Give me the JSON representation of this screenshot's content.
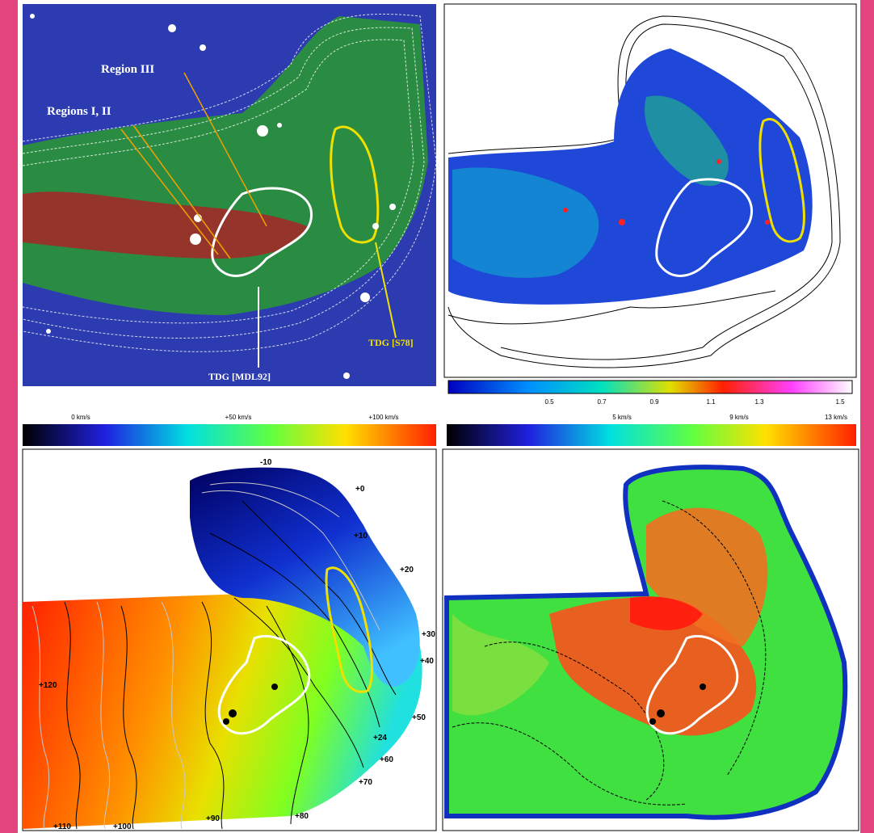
{
  "panels": {
    "top_left": {
      "labels": [
        "Region III",
        "Regions I, II",
        "TDG [MDL92]",
        "TDG [S78]"
      ]
    },
    "top_right": {
      "colorbar_ticks": [
        "0.5",
        "0.7",
        "0.9",
        "1.1",
        "1.3",
        "1.5"
      ]
    },
    "bottom_left": {
      "colorbar_ticks": [
        "0 km/s",
        "+50 km/s",
        "+100 km/s"
      ],
      "contour_labels": [
        "-10",
        "+0",
        "+10",
        "+20",
        "+30",
        "+40",
        "+50",
        "+24",
        "+60",
        "+70",
        "+80",
        "+90",
        "+100",
        "+110",
        "+120"
      ]
    },
    "bottom_right": {
      "colorbar_ticks": [
        "5 km/s",
        "9 km/s",
        "13 km/s"
      ]
    }
  }
}
